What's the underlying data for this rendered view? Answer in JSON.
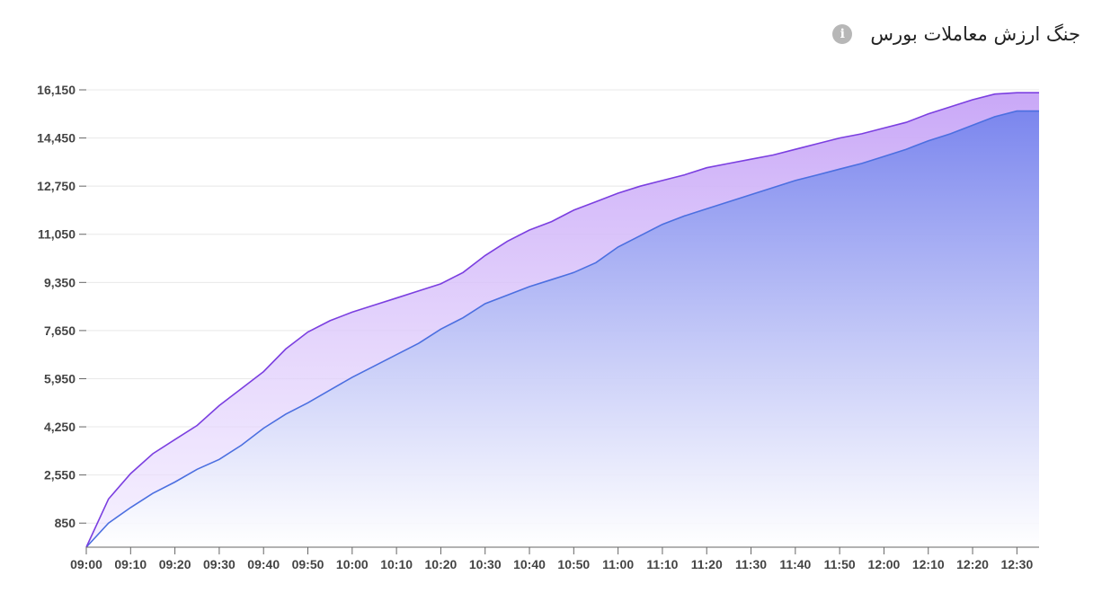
{
  "header": {
    "title": "جنگ ارزش معاملات بورس",
    "info_icon": "info-icon",
    "info_glyph": "i"
  },
  "colors": {
    "series_top_line": "#7b3fe0",
    "series_top_fill": "#c9a8f7",
    "series_bottom_line": "#4b6fe0",
    "series_bottom_fill": "#7b86ee",
    "grid": "#e8e8e8",
    "axis": "#666666"
  },
  "chart_data": {
    "type": "area",
    "title": "جنگ ارزش معاملات بورس",
    "xlabel": "",
    "ylabel": "",
    "ylim": [
      0,
      16150
    ],
    "yticks": [
      850,
      2550,
      4250,
      5950,
      7650,
      9350,
      11050,
      12750,
      14450,
      16150
    ],
    "ytick_labels": [
      "850",
      "2,550",
      "4,250",
      "5,950",
      "7,650",
      "9,350",
      "11,050",
      "12,750",
      "14,450",
      "16,150"
    ],
    "xtick_labels": [
      "09:00",
      "09:10",
      "09:20",
      "09:30",
      "09:40",
      "09:50",
      "10:00",
      "10:10",
      "10:20",
      "10:30",
      "10:40",
      "10:50",
      "11:00",
      "11:10",
      "11:20",
      "11:30",
      "11:40",
      "11:50",
      "12:00",
      "12:10",
      "12:20",
      "12:30"
    ],
    "grid": true,
    "legend": "none",
    "x": [
      "09:00",
      "09:05",
      "09:10",
      "09:15",
      "09:20",
      "09:25",
      "09:30",
      "09:35",
      "09:40",
      "09:45",
      "09:50",
      "09:55",
      "10:00",
      "10:05",
      "10:10",
      "10:15",
      "10:20",
      "10:25",
      "10:30",
      "10:35",
      "10:40",
      "10:45",
      "10:50",
      "10:55",
      "11:00",
      "11:05",
      "11:10",
      "11:15",
      "11:20",
      "11:25",
      "11:30",
      "11:35",
      "11:40",
      "11:45",
      "11:50",
      "11:55",
      "12:00",
      "12:05",
      "12:10",
      "12:15",
      "12:20",
      "12:25",
      "12:30",
      "12:35"
    ],
    "series": [
      {
        "values": [
          0,
          1700,
          2600,
          3300,
          3800,
          4300,
          5000,
          5600,
          6200,
          7000,
          7600,
          8000,
          8300,
          8550,
          8800,
          9050,
          9300,
          9700,
          10300,
          10800,
          11200,
          11500,
          11900,
          12200,
          12500,
          12750,
          12950,
          13150,
          13400,
          13550,
          13700,
          13850,
          14050,
          14250,
          14450,
          14600,
          14800,
          15000,
          15300,
          15550,
          15800,
          16000,
          16050,
          16050
        ]
      },
      {
        "values": [
          0,
          850,
          1400,
          1900,
          2300,
          2750,
          3100,
          3600,
          4200,
          4700,
          5100,
          5550,
          6000,
          6400,
          6800,
          7200,
          7700,
          8100,
          8600,
          8900,
          9200,
          9450,
          9700,
          10050,
          10600,
          11000,
          11400,
          11700,
          11950,
          12200,
          12450,
          12700,
          12950,
          13150,
          13350,
          13550,
          13800,
          14050,
          14350,
          14600,
          14900,
          15200,
          15400,
          15400
        ]
      }
    ]
  }
}
